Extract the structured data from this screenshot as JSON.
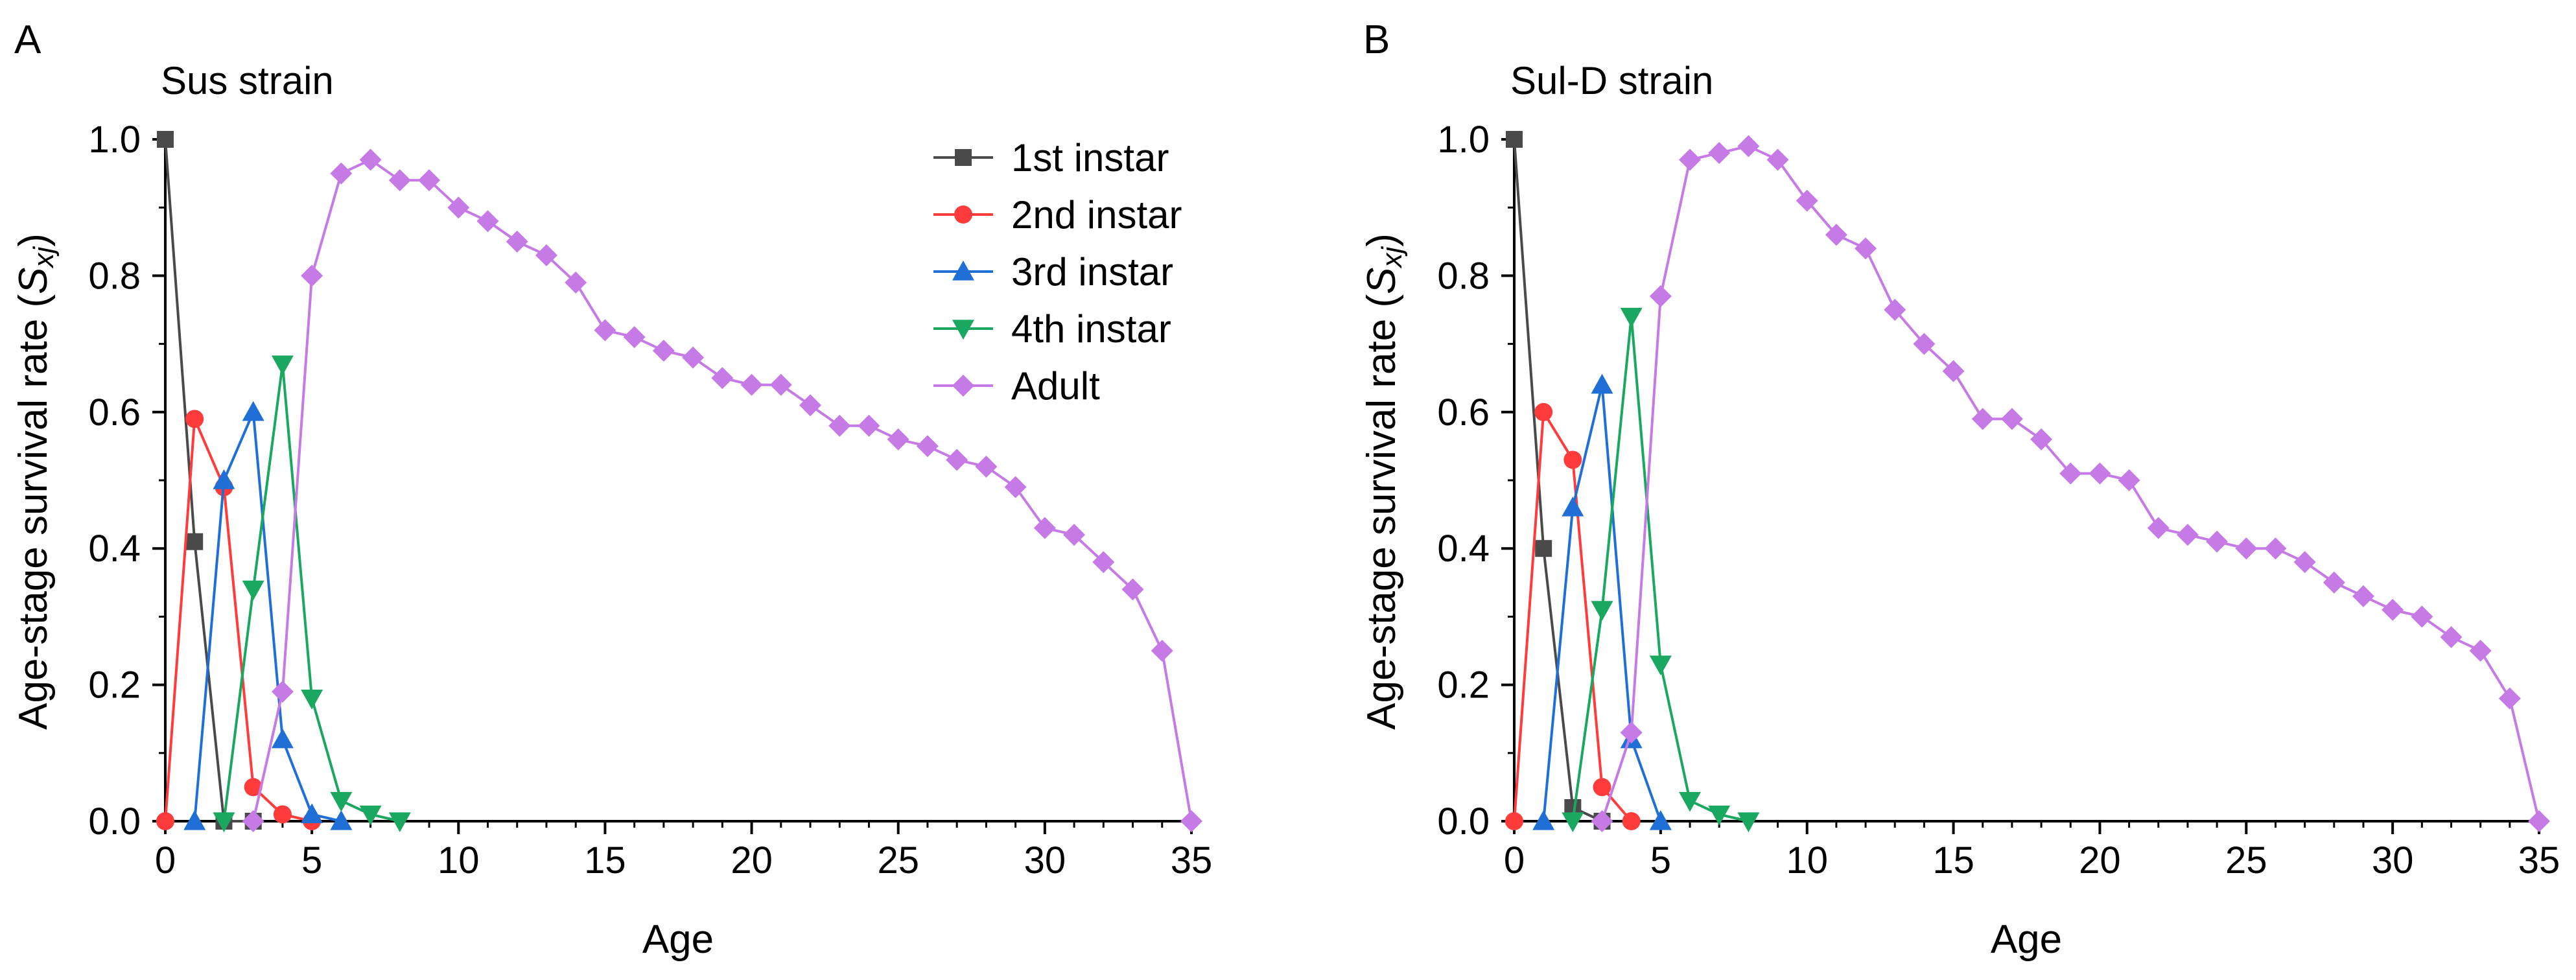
{
  "chart_data": [
    {
      "type": "line",
      "panel_label": "A",
      "title": "Sus strain",
      "xlabel": "Age",
      "ylabel": {
        "prefix": "Age-stage survival rate (",
        "var": "S",
        "sub": "xj",
        "suffix": ")"
      },
      "xlim": [
        0,
        35
      ],
      "ylim": [
        0,
        1.0
      ],
      "xticks": [
        0,
        5,
        10,
        15,
        20,
        25,
        30,
        35
      ],
      "yticks": [
        0.0,
        0.2,
        0.4,
        0.6,
        0.8,
        1.0
      ],
      "grid": false,
      "legend": "top-right",
      "series": [
        {
          "name": "1st instar",
          "color": "#4a4a4a",
          "marker": "square",
          "points": [
            [
              0,
              1.0
            ],
            [
              1,
              0.41
            ],
            [
              2,
              0.0
            ],
            [
              3,
              0.0
            ]
          ]
        },
        {
          "name": "2nd instar",
          "color": "#ff3b3b",
          "marker": "circle",
          "points": [
            [
              0,
              0.0
            ],
            [
              1,
              0.59
            ],
            [
              2,
              0.49
            ],
            [
              3,
              0.05
            ],
            [
              4,
              0.01
            ],
            [
              5,
              0.0
            ]
          ]
        },
        {
          "name": "3rd instar",
          "color": "#1f6fd6",
          "marker": "triangle-up",
          "points": [
            [
              1,
              0.0
            ],
            [
              2,
              0.5
            ],
            [
              3,
              0.6
            ],
            [
              4,
              0.12
            ],
            [
              5,
              0.01
            ],
            [
              6,
              0.0
            ]
          ]
        },
        {
          "name": "4th instar",
          "color": "#1aa760",
          "marker": "triangle-down",
          "points": [
            [
              2,
              0.0
            ],
            [
              3,
              0.34
            ],
            [
              4,
              0.67
            ],
            [
              5,
              0.18
            ],
            [
              6,
              0.03
            ],
            [
              7,
              0.01
            ],
            [
              8,
              0.0
            ]
          ]
        },
        {
          "name": "Adult",
          "color": "#c57ae6",
          "marker": "diamond",
          "points": [
            [
              3,
              0.0
            ],
            [
              4,
              0.19
            ],
            [
              5,
              0.8
            ],
            [
              6,
              0.95
            ],
            [
              7,
              0.97
            ],
            [
              8,
              0.94
            ],
            [
              9,
              0.94
            ],
            [
              10,
              0.9
            ],
            [
              11,
              0.88
            ],
            [
              12,
              0.85
            ],
            [
              13,
              0.83
            ],
            [
              14,
              0.79
            ],
            [
              15,
              0.72
            ],
            [
              16,
              0.71
            ],
            [
              17,
              0.69
            ],
            [
              18,
              0.68
            ],
            [
              19,
              0.65
            ],
            [
              20,
              0.64
            ],
            [
              21,
              0.64
            ],
            [
              22,
              0.61
            ],
            [
              23,
              0.58
            ],
            [
              24,
              0.58
            ],
            [
              25,
              0.56
            ],
            [
              26,
              0.55
            ],
            [
              27,
              0.53
            ],
            [
              28,
              0.52
            ],
            [
              29,
              0.49
            ],
            [
              30,
              0.43
            ],
            [
              31,
              0.42
            ],
            [
              32,
              0.38
            ],
            [
              33,
              0.34
            ],
            [
              34,
              0.25
            ],
            [
              35,
              0.0
            ]
          ]
        }
      ]
    },
    {
      "type": "line",
      "panel_label": "B",
      "title": "Sul-D strain",
      "xlabel": "Age",
      "ylabel": {
        "prefix": "Age-stage survival rate (",
        "var": "S",
        "sub": "xj",
        "suffix": ")"
      },
      "xlim": [
        0,
        35
      ],
      "ylim": [
        0,
        1.0
      ],
      "xticks": [
        0,
        5,
        10,
        15,
        20,
        25,
        30,
        35
      ],
      "yticks": [
        0.0,
        0.2,
        0.4,
        0.6,
        0.8,
        1.0
      ],
      "grid": false,
      "legend": "",
      "series": [
        {
          "name": "1st instar",
          "color": "#4a4a4a",
          "marker": "square",
          "points": [
            [
              0,
              1.0
            ],
            [
              1,
              0.4
            ],
            [
              2,
              0.02
            ],
            [
              3,
              0.0
            ]
          ]
        },
        {
          "name": "2nd instar",
          "color": "#ff3b3b",
          "marker": "circle",
          "points": [
            [
              0,
              0.0
            ],
            [
              1,
              0.6
            ],
            [
              2,
              0.53
            ],
            [
              3,
              0.05
            ],
            [
              4,
              0.0
            ]
          ]
        },
        {
          "name": "3rd instar",
          "color": "#1f6fd6",
          "marker": "triangle-up",
          "points": [
            [
              1,
              0.0
            ],
            [
              2,
              0.46
            ],
            [
              3,
              0.64
            ],
            [
              4,
              0.12
            ],
            [
              5,
              0.0
            ]
          ]
        },
        {
          "name": "4th instar",
          "color": "#1aa760",
          "marker": "triangle-down",
          "points": [
            [
              2,
              0.0
            ],
            [
              3,
              0.31
            ],
            [
              4,
              0.74
            ],
            [
              5,
              0.23
            ],
            [
              6,
              0.03
            ],
            [
              7,
              0.01
            ],
            [
              8,
              0.0
            ]
          ]
        },
        {
          "name": "Adult",
          "color": "#c57ae6",
          "marker": "diamond",
          "points": [
            [
              3,
              0.0
            ],
            [
              4,
              0.13
            ],
            [
              5,
              0.77
            ],
            [
              6,
              0.97
            ],
            [
              7,
              0.98
            ],
            [
              8,
              0.99
            ],
            [
              9,
              0.97
            ],
            [
              10,
              0.91
            ],
            [
              11,
              0.86
            ],
            [
              12,
              0.84
            ],
            [
              13,
              0.75
            ],
            [
              14,
              0.7
            ],
            [
              15,
              0.66
            ],
            [
              16,
              0.59
            ],
            [
              17,
              0.59
            ],
            [
              18,
              0.56
            ],
            [
              19,
              0.51
            ],
            [
              20,
              0.51
            ],
            [
              21,
              0.5
            ],
            [
              22,
              0.43
            ],
            [
              23,
              0.42
            ],
            [
              24,
              0.41
            ],
            [
              25,
              0.4
            ],
            [
              26,
              0.4
            ],
            [
              27,
              0.38
            ],
            [
              28,
              0.35
            ],
            [
              29,
              0.33
            ],
            [
              30,
              0.31
            ],
            [
              31,
              0.3
            ],
            [
              32,
              0.27
            ],
            [
              33,
              0.25
            ],
            [
              34,
              0.18
            ],
            [
              35,
              0.0
            ]
          ]
        }
      ]
    }
  ]
}
